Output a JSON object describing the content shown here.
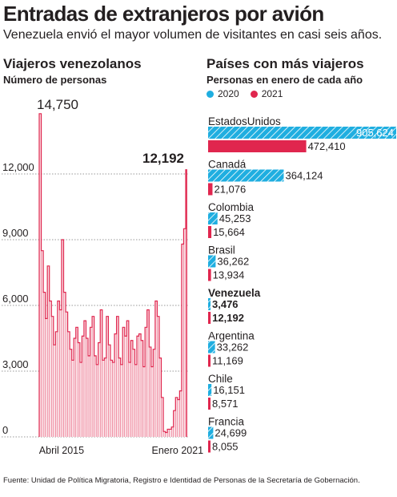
{
  "header": {
    "title": "Entradas de extranjeros por avión",
    "subtitle": "Venezuela envió el mayor volumen de visitantes en casi seis años."
  },
  "colors": {
    "c2020": "#1faee0",
    "c2021": "#e0264e",
    "line": "#e0264e",
    "text": "#231f20",
    "grid": "#777777"
  },
  "chart_data": [
    {
      "type": "area",
      "title": "Viajeros venezolanos",
      "ylabel": "Número de personas",
      "ylim": [
        0,
        15000
      ],
      "yticks": [
        0,
        3000,
        6000,
        9000,
        12000
      ],
      "ytick_labels": [
        "0",
        "3,000",
        "6,000",
        "9,000",
        "12,000"
      ],
      "xtick_labels": [
        {
          "label": "Abril 2015",
          "index": 11
        },
        {
          "label": "Enero 2021",
          "index": 68
        }
      ],
      "annotations": [
        {
          "label": "14,750",
          "index": 0
        },
        {
          "label": "12,192",
          "index": 72
        }
      ],
      "values": [
        14750,
        8500,
        6600,
        5400,
        7800,
        6200,
        5500,
        4200,
        4800,
        6200,
        5800,
        9000,
        6600,
        5700,
        4800,
        4000,
        3500,
        4500,
        5000,
        4300,
        3400,
        4600,
        5300,
        4500,
        3700,
        5000,
        5500,
        3700,
        3300,
        4300,
        5800,
        3500,
        3600,
        5500,
        4200,
        3500,
        3400,
        4700,
        5500,
        3600,
        3300,
        5000,
        4600,
        5300,
        3400,
        4400,
        4000,
        3300,
        4600,
        4700,
        4400,
        3200,
        5000,
        5800,
        4100,
        3200,
        4000,
        6200,
        5500,
        3600,
        1800,
        250,
        200,
        350,
        350,
        450,
        1200,
        1800,
        1700,
        2100,
        8800,
        9500,
        12192
      ]
    },
    {
      "type": "bar",
      "title": "Países con más viajeros",
      "ylabel": "Personas en enero de cada año",
      "legend": [
        "2020",
        "2021"
      ],
      "legend_position": "top",
      "categories": [
        "EstadosUnidos",
        "Canadá",
        "Colombia",
        "Brasil",
        "Venezuela",
        "Argentina",
        "Chile",
        "Francia"
      ],
      "highlight": "Venezuela",
      "series": [
        {
          "name": "2020",
          "values": [
            905624,
            364124,
            45253,
            36262,
            3476,
            33262,
            16151,
            24699
          ],
          "labels": [
            "905,624",
            "364,124",
            "45,253",
            "36,262",
            "3,476",
            "33,262",
            "16,151",
            "24,699"
          ]
        },
        {
          "name": "2021",
          "values": [
            472410,
            21076,
            15664,
            13934,
            12192,
            11169,
            8571,
            8055
          ],
          "labels": [
            "472,410",
            "21,076",
            "15,664",
            "13,934",
            "12,192",
            "11,169",
            "8,571",
            "8,055"
          ]
        }
      ],
      "xlim": [
        0,
        905624
      ]
    }
  ],
  "source": "Fuente: Unidad de Política Migratoria, Registro e Identidad de Personas de la Secretaría de Gobernación."
}
